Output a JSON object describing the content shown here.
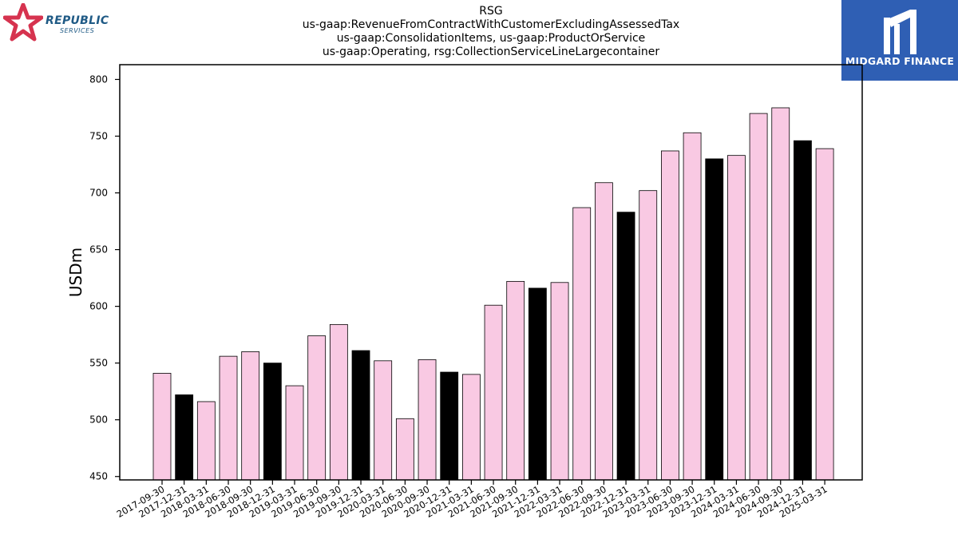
{
  "logos": {
    "left_word": "REPUBLIC",
    "left_sub": "SERVICES",
    "right_brand": "MIDGARD FINANCE"
  },
  "colors": {
    "bar_pink": "#f9c9e3",
    "bar_black": "#000000",
    "brand_red": "#d6334f",
    "brand_blue": "#1f5a85",
    "midgard_blue": "#2f5fb4"
  },
  "chart_data": {
    "type": "bar",
    "title_lines": [
      "RSG",
      "us-gaap:RevenueFromContractWithCustomerExcludingAssessedTax",
      "us-gaap:ConsolidationItems, us-gaap:ProductOrService",
      "us-gaap:Operating, rsg:CollectionServiceLineLargecontainer"
    ],
    "xlabel": "",
    "ylabel": "USDm",
    "ylim": [
      447,
      813
    ],
    "yticks": [
      450,
      500,
      550,
      600,
      650,
      700,
      750,
      800
    ],
    "grid": false,
    "categories": [
      "2017-09-30",
      "2017-12-31",
      "2018-03-31",
      "2018-06-30",
      "2018-09-30",
      "2018-12-31",
      "2019-03-31",
      "2019-06-30",
      "2019-09-30",
      "2019-12-31",
      "2020-03-31",
      "2020-06-30",
      "2020-09-30",
      "2020-12-31",
      "2021-03-31",
      "2021-06-30",
      "2021-09-30",
      "2021-12-31",
      "2022-03-31",
      "2022-06-30",
      "2022-09-30",
      "2022-12-31",
      "2023-03-31",
      "2023-06-30",
      "2023-09-30",
      "2023-12-31",
      "2024-03-31",
      "2024-06-30",
      "2024-09-30",
      "2024-12-31",
      "2025-03-31"
    ],
    "values": [
      541,
      522,
      516,
      556,
      560,
      550,
      530,
      574,
      584,
      561,
      552,
      501,
      553,
      542,
      540,
      601,
      622,
      616,
      621,
      687,
      709,
      683,
      702,
      737,
      753,
      730,
      733,
      770,
      775,
      746,
      739
    ],
    "highlight": [
      false,
      true,
      false,
      false,
      false,
      true,
      false,
      false,
      false,
      true,
      false,
      false,
      false,
      true,
      false,
      false,
      false,
      true,
      false,
      false,
      false,
      true,
      false,
      false,
      false,
      true,
      false,
      false,
      false,
      true,
      false
    ]
  }
}
